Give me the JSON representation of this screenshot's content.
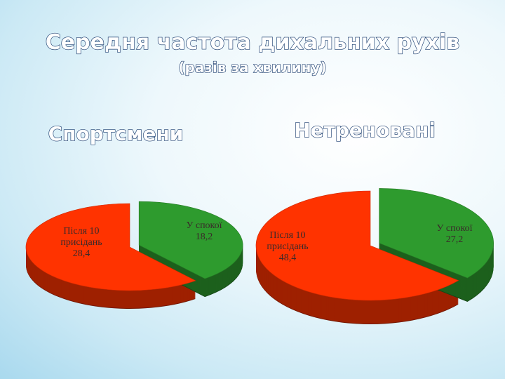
{
  "slide": {
    "title": "Середня частота дихальних рухів",
    "subtitle": "(разів за хвилину)"
  },
  "chart_data": [
    {
      "type": "pie",
      "title": "Спортсмени",
      "categories": [
        "Після 10 присідань",
        "У спокої"
      ],
      "values": [
        28.4,
        18.2
      ],
      "value_labels": [
        "28,4",
        "18,2"
      ],
      "colors": [
        "#ff3300",
        "#2e9b2e"
      ]
    },
    {
      "type": "pie",
      "title": "Нетреновані",
      "categories": [
        "Після 10 присідань",
        "У спокої"
      ],
      "values": [
        48.4,
        27.2
      ],
      "value_labels": [
        "48,4",
        "27,2"
      ],
      "colors": [
        "#ff3300",
        "#2e9b2e"
      ]
    }
  ]
}
